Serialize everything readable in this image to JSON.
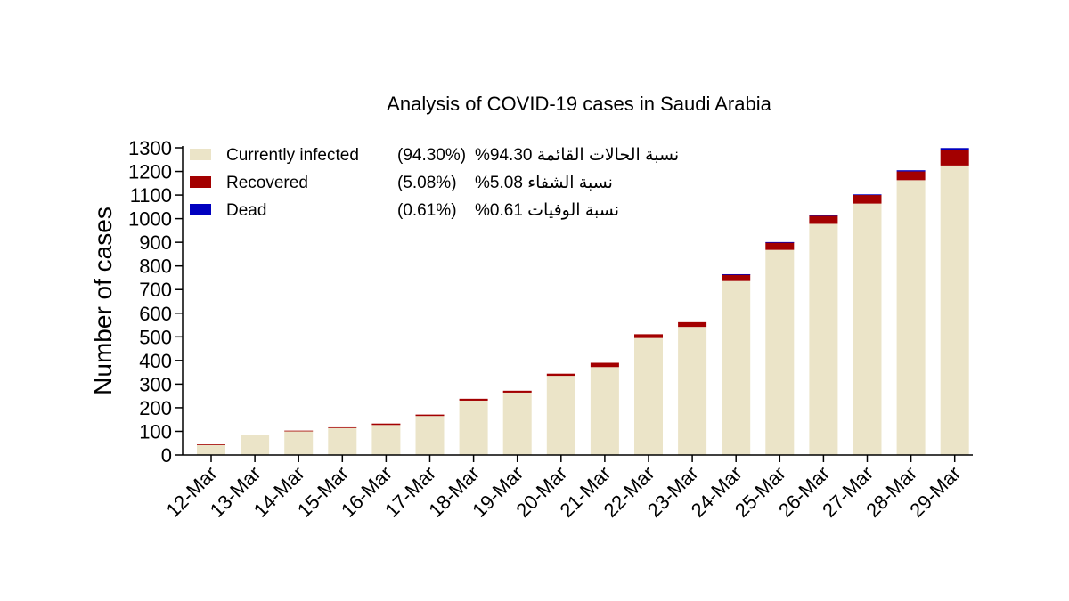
{
  "chart_data": {
    "type": "bar",
    "stacked": true,
    "title": "Analysis of COVID-19 cases in Saudi Arabia",
    "xlabel": "",
    "ylabel": "Number of cases",
    "ylim": [
      0,
      1300
    ],
    "yticks": [
      0,
      100,
      200,
      300,
      400,
      500,
      600,
      700,
      800,
      900,
      1000,
      1100,
      1200,
      1300
    ],
    "categories": [
      "12-Mar",
      "13-Mar",
      "14-Mar",
      "15-Mar",
      "16-Mar",
      "17-Mar",
      "18-Mar",
      "19-Mar",
      "20-Mar",
      "21-Mar",
      "22-Mar",
      "23-Mar",
      "24-Mar",
      "25-Mar",
      "26-Mar",
      "27-Mar",
      "28-Mar",
      "29-Mar"
    ],
    "series": [
      {
        "name": "Currently infected",
        "color": "#ebe4c8",
        "values": [
          44,
          85,
          102,
          114,
          127,
          165,
          230,
          264,
          335,
          372,
          495,
          542,
          736,
          868,
          978,
          1064,
          1163,
          1225
        ]
      },
      {
        "name": "Recovered",
        "color": "#a30000",
        "values": [
          1,
          1,
          1,
          3,
          6,
          6,
          8,
          8,
          9,
          18,
          16,
          20,
          28,
          32,
          35,
          37,
          37,
          66
        ]
      },
      {
        "name": "Dead",
        "color": "#0000bf",
        "values": [
          0,
          0,
          0,
          0,
          0,
          0,
          0,
          0,
          0,
          0,
          0,
          0,
          1,
          1,
          2,
          2,
          5,
          8
        ]
      }
    ],
    "legend": {
      "position": "top-left",
      "items": [
        {
          "label": "Currently infected",
          "pct": "(94.30%)",
          "arabic": "نسبة الحالات القائمة 94.30%",
          "color": "#ebe4c8"
        },
        {
          "label": "Recovered",
          "pct": "(5.08%)",
          "arabic": "نسبة الشفاء 5.08%",
          "color": "#a30000"
        },
        {
          "label": "Dead",
          "pct": "(0.61%)",
          "arabic": "نسبة الوفيات 0.61%",
          "color": "#0000bf"
        }
      ]
    }
  }
}
